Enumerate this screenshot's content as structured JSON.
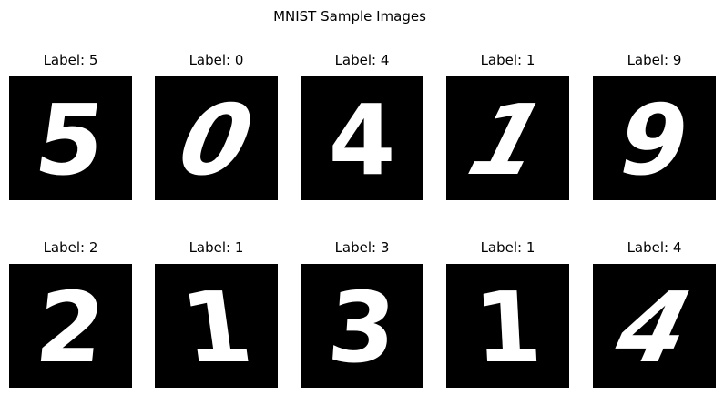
{
  "figure": {
    "title": "MNIST Sample Images"
  },
  "samples": [
    {
      "label_text": "Label: 5",
      "digit": "5",
      "glyph": "5",
      "tilt": 8
    },
    {
      "label_text": "Label: 0",
      "digit": "0",
      "glyph": "0",
      "tilt": 22
    },
    {
      "label_text": "Label: 4",
      "digit": "4",
      "glyph": "4",
      "tilt": 0
    },
    {
      "label_text": "Label: 1",
      "digit": "1",
      "glyph": "1",
      "tilt": 26
    },
    {
      "label_text": "Label: 9",
      "digit": "9",
      "glyph": "9",
      "tilt": 12
    },
    {
      "label_text": "Label: 2",
      "digit": "2",
      "glyph": "2",
      "tilt": 6
    },
    {
      "label_text": "Label: 1",
      "digit": "1",
      "glyph": "1",
      "tilt": -8
    },
    {
      "label_text": "Label: 3",
      "digit": "3",
      "glyph": "3",
      "tilt": 4
    },
    {
      "label_text": "Label: 1",
      "digit": "1",
      "glyph": "1",
      "tilt": -3
    },
    {
      "label_text": "Label: 4",
      "digit": "4",
      "glyph": "4",
      "tilt": 24
    }
  ],
  "colors": {
    "image_background": "#000000",
    "digit_stroke": "#ffffff",
    "text": "#000000"
  }
}
